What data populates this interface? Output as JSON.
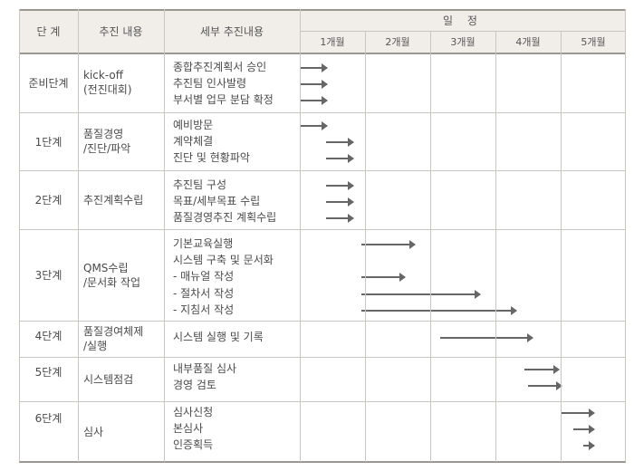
{
  "header": {
    "stage": "단 계",
    "content": "추진 내용",
    "details": "세부 추진내용",
    "schedule": "일 정",
    "months": [
      "1개월",
      "2개월",
      "3개월",
      "4개월",
      "5개월"
    ]
  },
  "rows": [
    {
      "stage": "준비단계",
      "content": [
        "kick-off",
        "(전진대회)"
      ],
      "details": [
        {
          "text": "종합추진계획서 승인",
          "from": 0.0,
          "to": 0.5
        },
        {
          "text": "추진팀 인사발령",
          "from": 0.0,
          "to": 0.5
        },
        {
          "text": "부서별 업무 분담 확정",
          "from": 0.0,
          "to": 0.5
        }
      ]
    },
    {
      "stage": "1단계",
      "content": [
        "품질경영",
        "/진단/파악"
      ],
      "details": [
        {
          "text": "예비방문",
          "from": 0.0,
          "to": 0.5
        },
        {
          "text": "계약체결",
          "from": 0.4,
          "to": 0.9
        },
        {
          "text": "진단 및 현황파악",
          "from": 0.4,
          "to": 0.9
        }
      ]
    },
    {
      "stage": "2단계",
      "content": [
        "추진계획수립"
      ],
      "details": [
        {
          "text": "추진팀 구성",
          "from": 0.4,
          "to": 0.9
        },
        {
          "text": "목표/세부목표 수립",
          "from": 0.4,
          "to": 0.9
        },
        {
          "text": "품질경영추진 계획수립",
          "from": 0.4,
          "to": 0.9
        }
      ]
    },
    {
      "stage": "3단계",
      "content": [
        "QMS수립",
        "/문서화 작업"
      ],
      "details": [
        {
          "text": "기본교육실행",
          "from": 0.95,
          "to": 1.85
        },
        {
          "text": "시스템 구축 및 문서화",
          "from": null,
          "to": null
        },
        {
          "text": "- 매뉴얼 작성",
          "from": 0.95,
          "to": 1.7
        },
        {
          "text": "- 절차서 작성",
          "from": 0.95,
          "to": 2.85
        },
        {
          "text": "- 지침서 작성",
          "from": 0.95,
          "to": 3.4
        }
      ]
    },
    {
      "stage": "4단계",
      "content": [
        "품질경여체제",
        "/실행"
      ],
      "details": [
        {
          "text": "시스템 실행 및 기록",
          "from": 2.15,
          "to": 3.65
        }
      ]
    },
    {
      "stage": "5단계",
      "content": [
        "시스템점검"
      ],
      "details": [
        {
          "text": "내부품질 심사",
          "from": 3.45,
          "to": 4.05
        },
        {
          "text": "경영 검토",
          "from": 3.5,
          "to": 4.1
        }
      ]
    },
    {
      "stage": "6단계",
      "content": [
        "심사"
      ],
      "details": [
        {
          "text": "심사신청",
          "from": 4.0,
          "to": 4.6
        },
        {
          "text": "본심사",
          "from": 4.2,
          "to": 4.6
        },
        {
          "text": "인증획득",
          "from": 4.35,
          "to": 4.6
        }
      ]
    }
  ]
}
